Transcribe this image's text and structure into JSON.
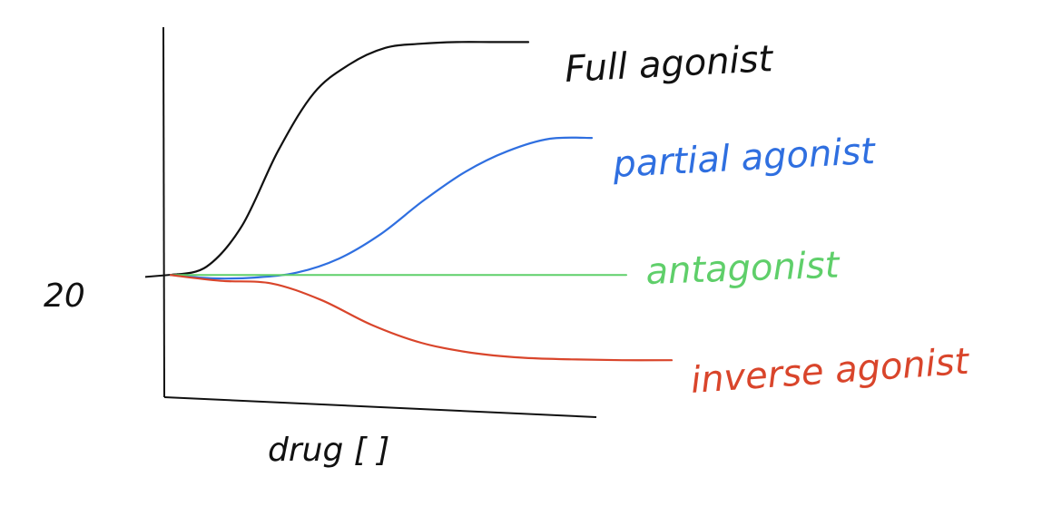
{
  "chart_data": {
    "type": "line",
    "xlabel": "drug [ ]",
    "ylabel": "",
    "y_tick_labels": [
      {
        "value": 20,
        "label": "20"
      }
    ],
    "x": [
      0,
      1,
      2,
      3,
      4,
      5,
      6,
      7,
      8,
      9,
      10
    ],
    "ylim": [
      5,
      50
    ],
    "series": [
      {
        "name": "Full agonist",
        "color": "#111111",
        "values": [
          20,
          21,
          26,
          35,
          42,
          45.5,
          47.5,
          48,
          48.2,
          48.2,
          48.2
        ]
      },
      {
        "name": "partial agonist",
        "color": "#2f6fe0",
        "values": [
          20,
          19.6,
          19.7,
          20.3,
          22,
          25,
          29,
          32.5,
          35,
          36.5,
          36.6
        ]
      },
      {
        "name": "antagonist",
        "color": "#5fcf6a",
        "values": [
          20,
          20,
          20,
          20,
          20,
          20,
          20,
          20,
          20,
          20,
          20
        ]
      },
      {
        "name": "inverse agonist",
        "color": "#d9452b",
        "values": [
          20,
          19.3,
          19,
          17,
          14,
          11.8,
          10.6,
          10,
          9.8,
          9.7,
          9.7
        ]
      }
    ]
  }
}
